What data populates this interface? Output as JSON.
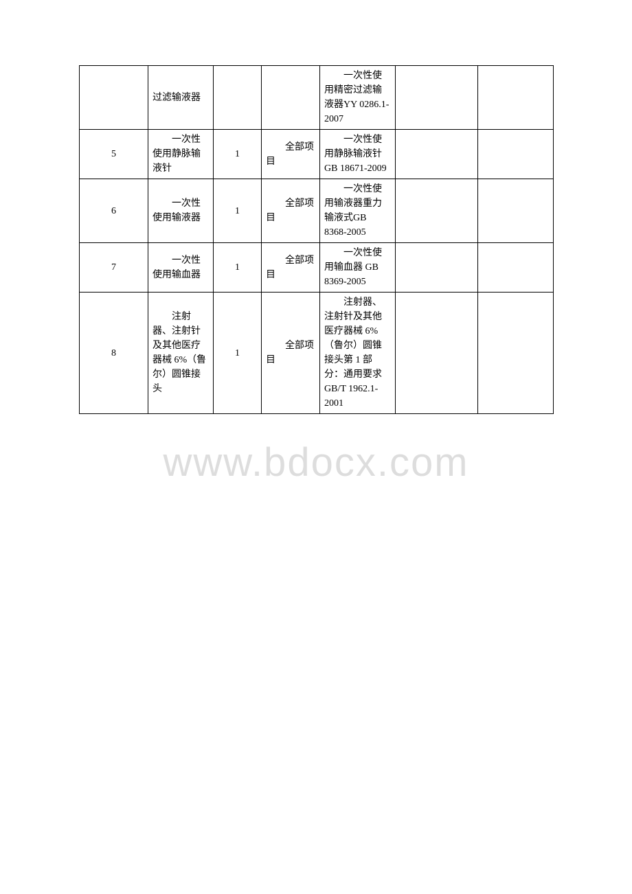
{
  "watermark": "www.bdocx.com",
  "table": {
    "columns_width": [
      100,
      95,
      70,
      85,
      110,
      120,
      110
    ],
    "font_size": 14,
    "border_color": "#000000",
    "background_color": "#ffffff",
    "text_color": "#000000",
    "rows": [
      {
        "c1": "",
        "c2": "过滤输液器",
        "c2_indent": false,
        "c3": "",
        "c4": "",
        "c4_indent": false,
        "c5": "　　一次性使用精密过滤输液器YY 0286.1-2007",
        "c5_indent": false,
        "c6": "",
        "c7": ""
      },
      {
        "c1": "5",
        "c2": "一次性使用静脉输液针",
        "c2_indent": true,
        "c3": "1",
        "c4": "全部项目",
        "c4_indent": true,
        "c5": "一次性使用静脉输液针GB 18671-2009",
        "c5_indent": true,
        "c6": "",
        "c7": ""
      },
      {
        "c1": "6",
        "c2": "一次性使用输液器",
        "c2_indent": true,
        "c3": "1",
        "c4": "全部项目",
        "c4_indent": true,
        "c5": "一次性使用输液器重力输液式GB 8368-2005",
        "c5_indent": true,
        "c6": "",
        "c7": ""
      },
      {
        "c1": "7",
        "c2": "一次性使用输血器",
        "c2_indent": true,
        "c3": "1",
        "c4": "全部项目",
        "c4_indent": true,
        "c5": "一次性使用输血器 GB 8369-2005",
        "c5_indent": true,
        "c6": "",
        "c7": ""
      },
      {
        "c1": "8",
        "c2": "注射器、注射针及其他医疗器械 6%（鲁尔）圆锥接头",
        "c2_indent": true,
        "c3": "1",
        "c4": "全部项目",
        "c4_indent": true,
        "c5": "注射器、注射针及其他医疗器械 6%（鲁尔）圆锥接头第 1 部分：通用要求 GB/T 1962.1-2001",
        "c5_indent": true,
        "c6": "",
        "c7": ""
      }
    ]
  }
}
